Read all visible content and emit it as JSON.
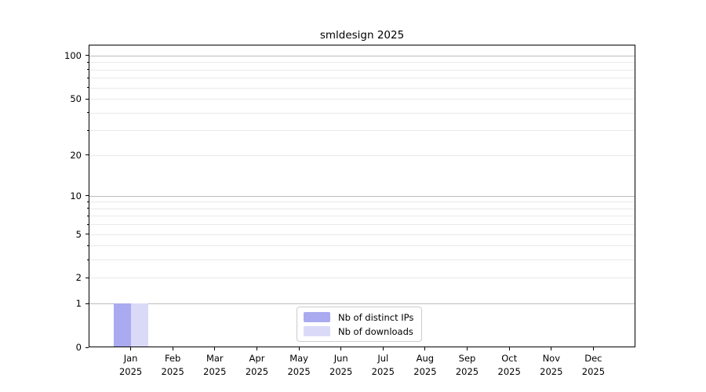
{
  "title": "smldesign 2025",
  "legend": {
    "items": [
      {
        "label": "Nb of distinct IPs",
        "color": "#aaaaf0"
      },
      {
        "label": "Nb of downloads",
        "color": "#dadaf8"
      }
    ]
  },
  "chart_data": {
    "type": "bar",
    "title": "smldesign 2025",
    "categories": [
      "Jan",
      "Feb",
      "Mar",
      "Apr",
      "May",
      "Jun",
      "Jul",
      "Aug",
      "Sep",
      "Oct",
      "Nov",
      "Dec"
    ],
    "category_year": "2025",
    "series": [
      {
        "name": "Nb of distinct IPs",
        "color": "#aaaaf0",
        "values": [
          1,
          0,
          0,
          0,
          0,
          0,
          0,
          0,
          0,
          0,
          0,
          0
        ]
      },
      {
        "name": "Nb of downloads",
        "color": "#dadaf8",
        "values": [
          1,
          0,
          0,
          0,
          0,
          0,
          0,
          0,
          0,
          0,
          0,
          0
        ]
      }
    ],
    "yscale": "log1p",
    "ylim": [
      0,
      119
    ],
    "ytick_values": [
      0,
      1,
      2,
      5,
      10,
      20,
      50,
      100
    ],
    "ytick_labels": [
      "0",
      "1",
      "2",
      "5",
      "10",
      "20",
      "50",
      "100"
    ],
    "minor_tick_values": [
      3,
      4,
      6,
      7,
      8,
      9,
      30,
      40,
      60,
      70,
      80,
      90
    ],
    "major_grid_values": [
      1,
      10,
      100
    ],
    "grid": "both",
    "legend_position": "lower center",
    "colors": {
      "major_grid": "#bdbdbd",
      "minor_grid": "#e9e9e9",
      "axis": "#000000",
      "background": "#ffffff"
    }
  }
}
